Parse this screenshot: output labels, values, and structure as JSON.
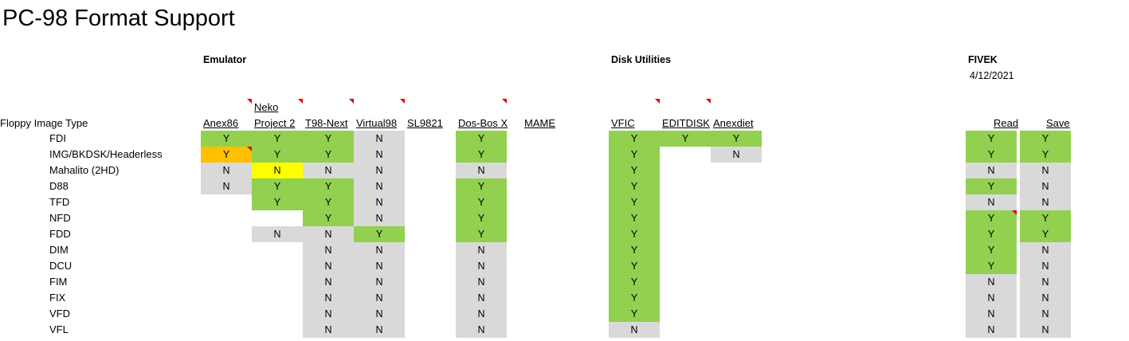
{
  "title": "PC-98 Format Support",
  "sections": {
    "emulator": "Emulator",
    "disk_utilities": "Disk Utilities",
    "fivek": "FIVEK",
    "fivek_date": "4/12/2021"
  },
  "row_header": "Floppy Image Type",
  "headers": {
    "anex86": "Anex86",
    "neko_line1": "Neko",
    "neko_line2": "Project 2",
    "t98next": "T98-Next",
    "virtual98": "Virtual98",
    "sl9821": "SL9821",
    "dosbox": "Dos-Bos X",
    "mame": "MAME",
    "vfic": "VFIC",
    "editdisk": "EDITDISK",
    "anexdiet": "Anexdiet",
    "read": "Read",
    "save": "Save"
  },
  "rows": [
    "FDI",
    "IMG/BKDSK/Headerless",
    "Mahalito (2HD)",
    "D88",
    "TFD",
    "NFD",
    "FDD",
    "DIM",
    "DCU",
    "FIM",
    "FIX",
    "VFD",
    "VFL"
  ],
  "columns": [
    {
      "key": "anex86",
      "values": [
        "Y",
        "Y",
        "N",
        "N",
        "",
        "",
        "",
        "",
        "",
        "",
        "",
        "",
        ""
      ]
    },
    {
      "key": "neko",
      "values": [
        "Y",
        "Y",
        "N",
        "Y",
        "Y",
        "",
        "N",
        "",
        "",
        "",
        "",
        "",
        ""
      ]
    },
    {
      "key": "t98next",
      "values": [
        "Y",
        "Y",
        "N",
        "Y",
        "Y",
        "Y",
        "N",
        "N",
        "N",
        "N",
        "N",
        "N",
        "N"
      ]
    },
    {
      "key": "virtual98",
      "values": [
        "N",
        "N",
        "N",
        "N",
        "N",
        "N",
        "Y",
        "N",
        "N",
        "N",
        "N",
        "N",
        "N"
      ]
    },
    {
      "key": "sl9821",
      "values": [
        "",
        "",
        "",
        "",
        "",
        "",
        "",
        "",
        "",
        "",
        "",
        "",
        ""
      ]
    },
    {
      "key": "dosbox",
      "values": [
        "Y",
        "Y",
        "N",
        "Y",
        "Y",
        "Y",
        "Y",
        "N",
        "N",
        "N",
        "N",
        "N",
        "N"
      ]
    },
    {
      "key": "mame",
      "values": [
        "",
        "",
        "",
        "",
        "",
        "",
        "",
        "",
        "",
        "",
        "",
        "",
        ""
      ]
    },
    {
      "key": "vfic",
      "values": [
        "Y",
        "Y",
        "Y",
        "Y",
        "Y",
        "Y",
        "Y",
        "Y",
        "Y",
        "Y",
        "Y",
        "Y",
        "N"
      ]
    },
    {
      "key": "editdisk",
      "values": [
        "Y",
        "",
        "",
        "",
        "",
        "",
        "",
        "",
        "",
        "",
        "",
        "",
        ""
      ]
    },
    {
      "key": "anexdiet",
      "values": [
        "Y",
        "N",
        "",
        "",
        "",
        "",
        "",
        "",
        "",
        "",
        "",
        "",
        ""
      ]
    },
    {
      "key": "read",
      "values": [
        "Y",
        "Y",
        "N",
        "Y",
        "N",
        "Y",
        "Y",
        "Y",
        "Y",
        "N",
        "N",
        "N",
        "N"
      ]
    },
    {
      "key": "save",
      "values": [
        "Y",
        "Y",
        "N",
        "N",
        "N",
        "Y",
        "Y",
        "N",
        "N",
        "N",
        "N",
        "N",
        "N"
      ]
    }
  ],
  "colors": {
    "yes": "#92d050",
    "no": "#d9d9d9",
    "partial_orange": "#ffc000",
    "partial_yellow": "#ffff00",
    "comment_marker": "#e00000"
  }
}
